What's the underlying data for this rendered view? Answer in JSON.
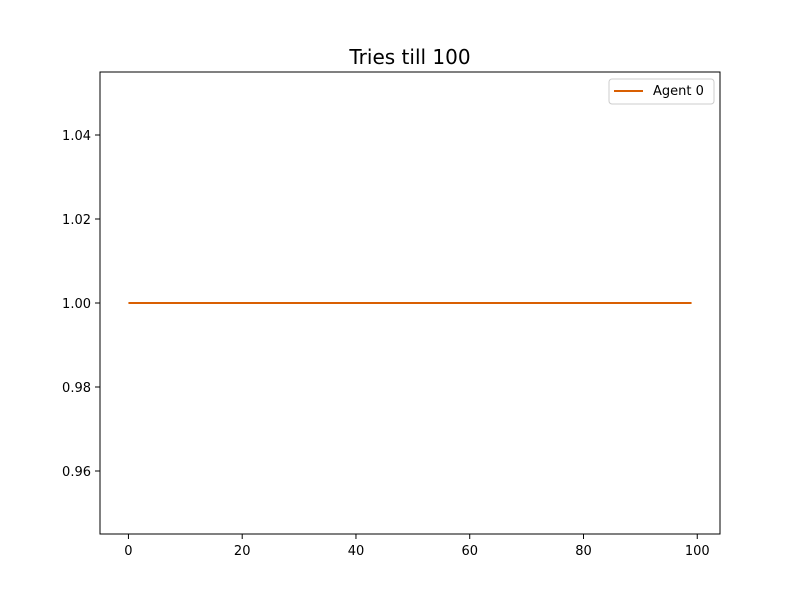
{
  "chart_data": {
    "type": "line",
    "title": "Tries till 100",
    "xlabel": "",
    "ylabel": "",
    "xlim": [
      -5,
      104
    ],
    "ylim": [
      0.945,
      1.055
    ],
    "xticks": [
      0,
      20,
      40,
      60,
      80,
      100
    ],
    "xtick_labels": [
      "0",
      "20",
      "40",
      "60",
      "80",
      "100"
    ],
    "yticks": [
      0.96,
      0.98,
      1.0,
      1.02,
      1.04
    ],
    "ytick_labels": [
      "0.96",
      "0.98",
      "1.00",
      "1.02",
      "1.04"
    ],
    "grid": false,
    "legend_position": "top-right",
    "series": [
      {
        "name": "Agent 0",
        "color": "#d95f02",
        "x_range": [
          0,
          99
        ],
        "constant_value": 1.0
      }
    ]
  }
}
